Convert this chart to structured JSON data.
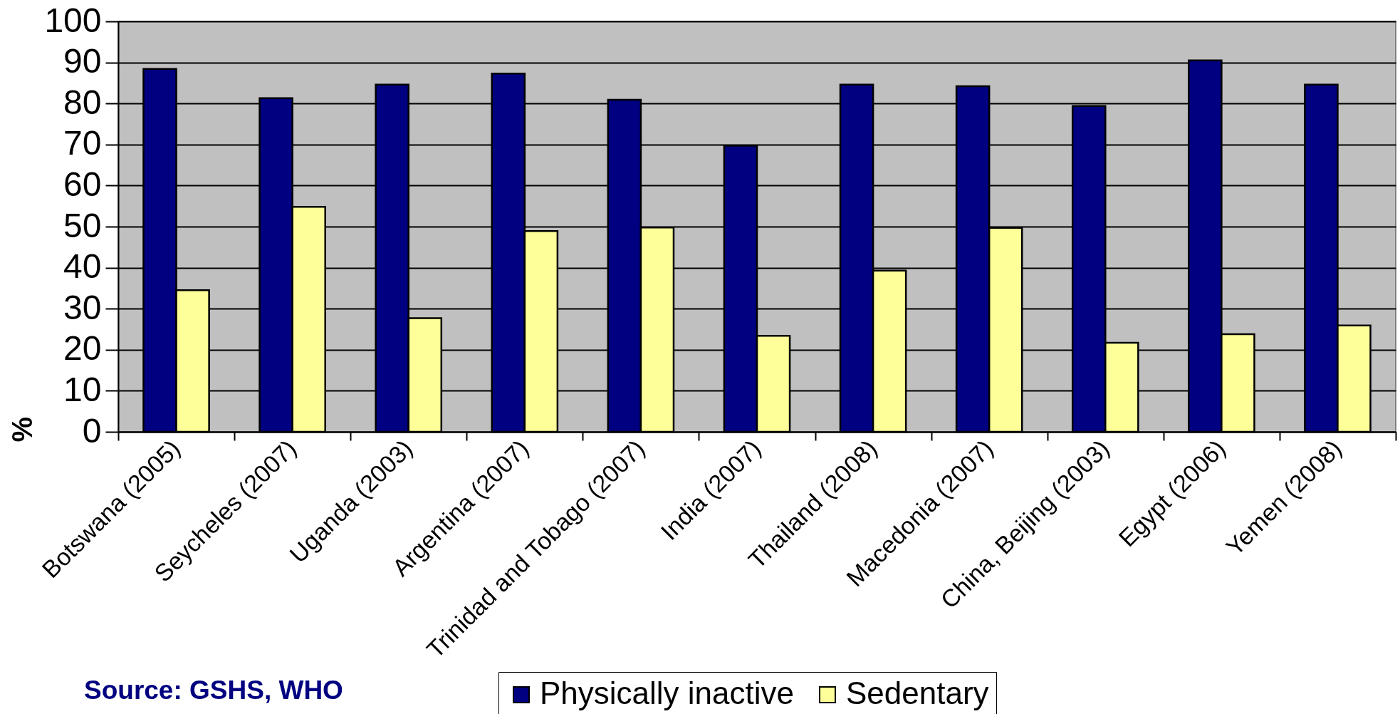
{
  "chart_data": {
    "type": "bar",
    "categories": [
      "Botswana (2005)",
      "Seycheles (2007)",
      "Uganda (2003)",
      "Argentina (2007)",
      "Trinidad and Tobago (2007)",
      "India (2007)",
      "Thailand (2008)",
      "Macedonia (2007)",
      "China, Beijing (2003)",
      "Egypt (2006)",
      "Yemen (2008)"
    ],
    "series": [
      {
        "name": "Physically inactive",
        "color": "#000080",
        "values": [
          88.4,
          81.3,
          84.6,
          87.3,
          80.9,
          69.7,
          84.6,
          84.2,
          79.4,
          90.5,
          84.6
        ]
      },
      {
        "name": "Sedentary",
        "color": "#ffff99",
        "values": [
          34.5,
          54.8,
          27.7,
          48.9,
          49.8,
          23.4,
          39.3,
          49.7,
          21.7,
          23.8,
          25.9
        ]
      }
    ],
    "ylabel": "%",
    "ylim": [
      0,
      100
    ],
    "yticks": [
      0,
      10,
      20,
      30,
      40,
      50,
      60,
      70,
      80,
      90,
      100
    ],
    "grid": "y",
    "legend": "bottom",
    "annotations": [
      "Source: GSHS, WHO"
    ]
  }
}
